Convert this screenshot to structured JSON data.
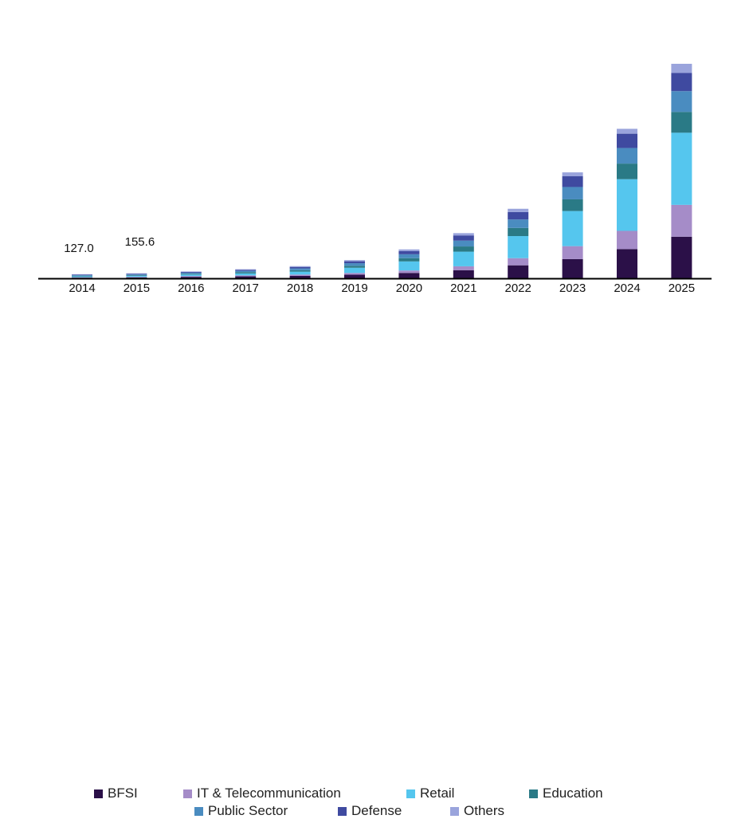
{
  "chart_data": {
    "type": "bar",
    "stacked": true,
    "title": "",
    "xlabel": "",
    "ylabel": "",
    "categories": [
      "2014",
      "2015",
      "2016",
      "2017",
      "2018",
      "2019",
      "2020",
      "2021",
      "2022",
      "2023",
      "2024",
      "2025"
    ],
    "annotations": [
      {
        "category": "2014",
        "text": "127.0"
      },
      {
        "category": "2015",
        "text": "155.6"
      }
    ],
    "series": [
      {
        "name": "BFSI",
        "color": "#2b1048",
        "values": [
          20,
          25,
          45,
          60,
          75,
          110,
          165,
          250,
          400,
          590,
          900,
          1280
        ]
      },
      {
        "name": "IT & Telecommunication",
        "color": "#a58cc8",
        "values": [
          15,
          18,
          25,
          30,
          40,
          55,
          75,
          120,
          220,
          400,
          560,
          980
        ]
      },
      {
        "name": "Retail",
        "color": "#55c6ee",
        "values": [
          25,
          30,
          45,
          60,
          90,
          160,
          280,
          450,
          680,
          1080,
          1590,
          2220
        ]
      },
      {
        "name": "Education",
        "color": "#2a7a86",
        "values": [
          17,
          20,
          25,
          40,
          45,
          60,
          100,
          160,
          250,
          360,
          480,
          640
        ]
      },
      {
        "name": "Public Sector",
        "color": "#4a8cc0",
        "values": [
          20,
          25,
          30,
          40,
          55,
          80,
          120,
          180,
          260,
          380,
          480,
          640
        ]
      },
      {
        "name": "Defense",
        "color": "#3f4aa0",
        "values": [
          17,
          20,
          25,
          30,
          45,
          60,
          100,
          160,
          230,
          330,
          440,
          560
        ]
      },
      {
        "name": "Others",
        "color": "#9aa4dc",
        "values": [
          13,
          17.6,
          15,
          20,
          25,
          35,
          50,
          70,
          100,
          120,
          150,
          280
        ]
      }
    ],
    "ylim": [
      0,
      7000
    ],
    "grid": false,
    "legend": "bottom"
  }
}
